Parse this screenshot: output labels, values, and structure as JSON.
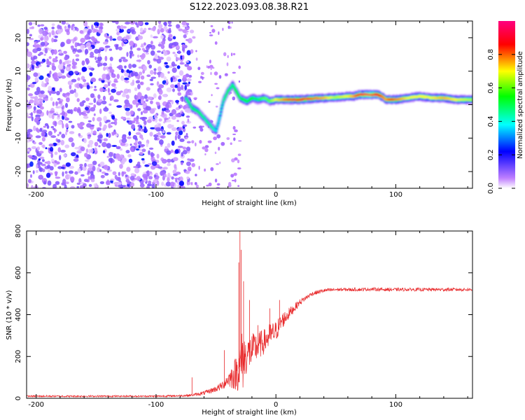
{
  "figure": {
    "title": "S122.2023.093.08.38.R21"
  },
  "chart_data": [
    {
      "type": "heatmap",
      "name": "spectrogram",
      "title": "S122.2023.093.08.38.R21",
      "xlabel": "Height of straight line (km)",
      "ylabel": "Frequency (Hz)",
      "xlim": [
        -208,
        164
      ],
      "ylim": [
        -25,
        25
      ],
      "xticks": [
        -200,
        -100,
        0,
        100
      ],
      "yticks": [
        -20,
        -10,
        0,
        10,
        20
      ],
      "colorbar": {
        "label": "Normalized spectral amplitude",
        "range": [
          0,
          1
        ],
        "ticks": [
          0.0,
          0.2,
          0.4,
          0.6,
          0.8
        ],
        "colors": [
          "#ffffff",
          "#c080ff",
          "#0000ff",
          "#00ffff",
          "#00ff00",
          "#ffff00",
          "#ff0000",
          "#ff0080"
        ]
      },
      "noise_region": {
        "x_from": -208,
        "x_to": -70,
        "freq_from": -25,
        "freq_to": 25,
        "amplitude": 0.25
      },
      "ridge": {
        "x": [
          -75,
          -70,
          -65,
          -60,
          -55,
          -50,
          -47,
          -44,
          -40,
          -36,
          -33,
          -30,
          -27,
          -24,
          -20,
          -15,
          -10,
          -5,
          0,
          10,
          20,
          30,
          40,
          50,
          60,
          65,
          70,
          75,
          80,
          85,
          88,
          92,
          96,
          100,
          110,
          120,
          130,
          140,
          150,
          164
        ],
        "freq": [
          2,
          -1,
          -2,
          -4,
          -6,
          -8,
          -4,
          1,
          4,
          6,
          4,
          2,
          1.5,
          1,
          2,
          1.5,
          2,
          1,
          1.5,
          1.5,
          1.5,
          1.8,
          2,
          2.2,
          2.5,
          2.5,
          3,
          3,
          3,
          3,
          2.5,
          1.5,
          1.5,
          1.5,
          2,
          2.5,
          2,
          2,
          1.5,
          1.5
        ],
        "amplitude": [
          0.45,
          0.5,
          0.5,
          0.45,
          0.45,
          0.4,
          0.4,
          0.45,
          0.5,
          0.45,
          0.55,
          0.5,
          0.55,
          0.55,
          0.55,
          0.55,
          0.6,
          0.6,
          0.7,
          0.8,
          0.85,
          0.8,
          0.75,
          0.65,
          0.7,
          0.75,
          0.9,
          0.95,
          0.95,
          0.9,
          0.8,
          0.75,
          0.85,
          0.8,
          0.7,
          0.7,
          0.7,
          0.75,
          0.7,
          0.65
        ]
      }
    },
    {
      "type": "line",
      "name": "snr",
      "xlabel": "Height of straight line (km)",
      "ylabel": "SNR (10 * v/v)",
      "xlim": [
        -208,
        164
      ],
      "ylim": [
        0,
        800
      ],
      "xticks": [
        -200,
        -100,
        0,
        100
      ],
      "yticks": [
        0,
        200,
        400,
        600,
        800
      ],
      "color": "#e8282a",
      "envelope": {
        "x": [
          -208,
          -150,
          -100,
          -80,
          -70,
          -65,
          -60,
          -55,
          -50,
          -45,
          -40,
          -35,
          -30,
          -28,
          -25,
          -20,
          -15,
          -10,
          -5,
          0,
          5,
          10,
          15,
          20,
          25,
          30,
          40,
          50,
          60,
          70,
          80,
          90,
          100,
          120,
          140,
          164
        ],
        "mean": [
          10,
          10,
          10,
          12,
          15,
          20,
          25,
          35,
          45,
          60,
          90,
          110,
          150,
          180,
          200,
          230,
          250,
          270,
          300,
          320,
          370,
          400,
          430,
          460,
          480,
          500,
          515,
          520,
          520,
          520,
          522,
          520,
          520,
          520,
          520,
          520
        ],
        "noise": [
          4,
          4,
          4,
          5,
          6,
          8,
          10,
          12,
          15,
          20,
          35,
          70,
          120,
          160,
          90,
          80,
          70,
          60,
          60,
          50,
          40,
          30,
          20,
          15,
          12,
          10,
          10,
          8,
          8,
          8,
          8,
          8,
          8,
          8,
          8,
          8
        ]
      },
      "spikes": [
        {
          "x": -70,
          "y": 100
        },
        {
          "x": -43,
          "y": 230
        },
        {
          "x": -30,
          "y": 800
        },
        {
          "x": -29,
          "y": 710
        },
        {
          "x": -31,
          "y": 650
        },
        {
          "x": -27,
          "y": 560
        },
        {
          "x": -22,
          "y": 470
        },
        {
          "x": -15,
          "y": 350
        },
        {
          "x": -5,
          "y": 430
        },
        {
          "x": 3,
          "y": 470
        }
      ]
    }
  ]
}
